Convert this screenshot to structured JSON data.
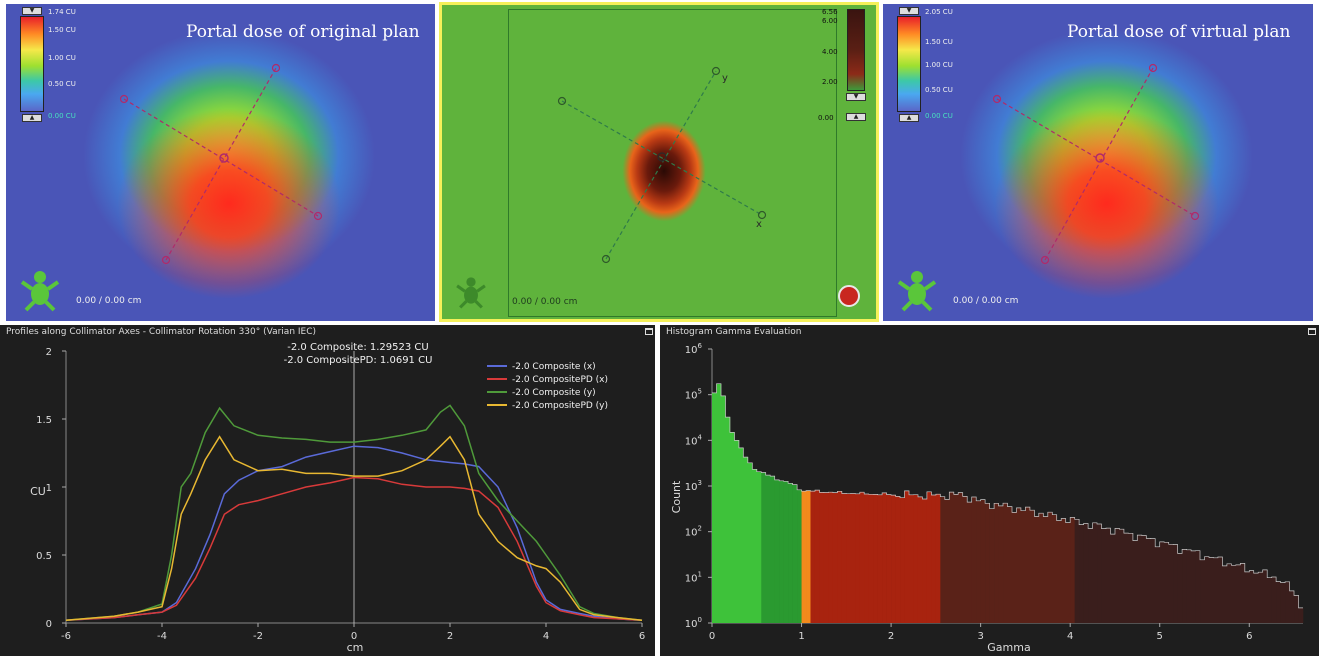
{
  "left_dose": {
    "title": "Portal dose of original plan",
    "scale_labels": [
      "1.74 CU",
      "1.50 CU",
      "1.00 CU",
      "0.50 CU",
      "0.00 CU"
    ],
    "coordinates": "0.00 /  0.00 cm"
  },
  "right_dose": {
    "title": "Portal dose of virtual plan",
    "scale_labels": [
      "2.05 CU",
      "1.50 CU",
      "1.00 CU",
      "0.50 CU",
      "0.00 CU"
    ],
    "coordinates": "0.00 /  0.00 cm"
  },
  "gamma_map": {
    "scale_labels": [
      "6.56",
      "6.00",
      "4.00",
      "2.00",
      "0.00"
    ],
    "coordinates": "0.00 /  0.00 cm",
    "axis_x_label": "x",
    "axis_y_label": "y"
  },
  "profile_panel": {
    "title": "Profiles along Collimator Axes - Collimator Rotation 330° (Varian IEC)",
    "readout_1": "-2.0 Composite: 1.29523 CU",
    "readout_2": "-2.0 CompositePD: 1.0691 CU"
  },
  "histogram_panel": {
    "title": "Histogram Gamma Evaluation"
  },
  "chart_data": [
    {
      "type": "line",
      "xlabel": "cm",
      "ylabel": "CU",
      "xlim": [
        -6,
        6
      ],
      "ylim": [
        0,
        2
      ],
      "x_ticks": [
        "-6",
        "-4",
        "-2",
        "0",
        "2",
        "4",
        "6"
      ],
      "y_ticks": [
        "0",
        "0.5",
        "1",
        "1.5",
        "2"
      ],
      "legend_position": "top-right",
      "cursor_x": 0,
      "series": [
        {
          "name": "-2.0 Composite (x)",
          "color": "#5a6ad8",
          "x": [
            -6,
            -5,
            -4.5,
            -4,
            -3.7,
            -3.3,
            -3,
            -2.7,
            -2.4,
            -2,
            -1.5,
            -1,
            -0.5,
            0,
            0.5,
            1,
            1.5,
            2,
            2.3,
            2.6,
            3,
            3.4,
            3.8,
            4,
            4.3,
            4.7,
            5,
            5.5,
            6
          ],
          "y": [
            0.02,
            0.04,
            0.06,
            0.08,
            0.15,
            0.4,
            0.65,
            0.95,
            1.05,
            1.12,
            1.15,
            1.22,
            1.26,
            1.3,
            1.29,
            1.25,
            1.2,
            1.18,
            1.17,
            1.15,
            1.0,
            0.7,
            0.3,
            0.17,
            0.1,
            0.07,
            0.05,
            0.03,
            0.02
          ]
        },
        {
          "name": "-2.0 CompositePD (x)",
          "color": "#d83a3a",
          "x": [
            -6,
            -5,
            -4.5,
            -4,
            -3.7,
            -3.3,
            -3,
            -2.7,
            -2.4,
            -2,
            -1.5,
            -1,
            -0.5,
            0,
            0.5,
            1,
            1.5,
            2,
            2.3,
            2.6,
            3,
            3.4,
            3.8,
            4,
            4.3,
            4.7,
            5,
            5.5,
            6
          ],
          "y": [
            0.02,
            0.04,
            0.06,
            0.08,
            0.13,
            0.33,
            0.55,
            0.8,
            0.87,
            0.9,
            0.95,
            1.0,
            1.03,
            1.07,
            1.06,
            1.02,
            1.0,
            1.0,
            0.99,
            0.97,
            0.85,
            0.6,
            0.27,
            0.15,
            0.09,
            0.06,
            0.04,
            0.03,
            0.02
          ]
        },
        {
          "name": "-2.0 Composite (y)",
          "color": "#4f9a3a",
          "x": [
            -6,
            -5,
            -4.5,
            -4,
            -3.8,
            -3.6,
            -3.4,
            -3.1,
            -2.8,
            -2.5,
            -2,
            -1.5,
            -1,
            -0.5,
            0,
            0.5,
            1,
            1.5,
            1.8,
            2,
            2.3,
            2.6,
            3,
            3.4,
            3.8,
            4,
            4.3,
            4.7,
            5,
            5.5,
            6
          ],
          "y": [
            0.02,
            0.05,
            0.08,
            0.14,
            0.5,
            1.0,
            1.1,
            1.4,
            1.58,
            1.45,
            1.38,
            1.36,
            1.35,
            1.33,
            1.33,
            1.35,
            1.38,
            1.42,
            1.55,
            1.6,
            1.45,
            1.1,
            0.9,
            0.75,
            0.6,
            0.5,
            0.35,
            0.12,
            0.07,
            0.04,
            0.02
          ]
        },
        {
          "name": "-2.0 CompositePD (y)",
          "color": "#e8b832",
          "x": [
            -6,
            -5,
            -4.5,
            -4,
            -3.8,
            -3.6,
            -3.4,
            -3.1,
            -2.8,
            -2.5,
            -2,
            -1.5,
            -1,
            -0.5,
            0,
            0.5,
            1,
            1.5,
            1.8,
            2,
            2.3,
            2.6,
            3,
            3.4,
            3.8,
            4,
            4.3,
            4.7,
            5,
            5.5,
            6
          ],
          "y": [
            0.02,
            0.05,
            0.08,
            0.12,
            0.4,
            0.8,
            0.95,
            1.2,
            1.37,
            1.2,
            1.12,
            1.13,
            1.1,
            1.1,
            1.08,
            1.08,
            1.12,
            1.2,
            1.3,
            1.37,
            1.2,
            0.8,
            0.6,
            0.48,
            0.42,
            0.4,
            0.3,
            0.1,
            0.06,
            0.04,
            0.02
          ]
        }
      ]
    },
    {
      "type": "bar",
      "xlabel": "Gamma",
      "ylabel": "Count",
      "xlim": [
        0,
        6.6
      ],
      "ylim": [
        1,
        1000000
      ],
      "y_scale": "log",
      "x_ticks": [
        "0",
        "1",
        "2",
        "3",
        "4",
        "5",
        "6"
      ],
      "y_tick_exponents": [
        "0",
        "1",
        "2",
        "3",
        "4",
        "5",
        "6"
      ],
      "y_tick_base": "10",
      "bin_width": 0.05,
      "pass_color": "#2aa632",
      "fail_color_start": "#f07a1a",
      "fail_color_mid": "#a8200e",
      "fail_color_end": "#3a1e1c",
      "anchor_points_gamma": [
        0.0,
        0.05,
        0.1,
        0.15,
        0.2,
        0.3,
        0.4,
        0.5,
        0.7,
        0.9,
        1.0,
        1.5,
        2.0,
        2.5,
        2.8,
        3.0,
        3.5,
        4.0,
        4.5,
        5.0,
        5.5,
        6.0,
        6.3,
        6.5,
        6.6
      ],
      "anchor_points_count": [
        80000,
        150000,
        180000,
        50000,
        20000,
        8000,
        3500,
        2200,
        1500,
        1100,
        800,
        700,
        650,
        620,
        650,
        450,
        300,
        180,
        110,
        60,
        30,
        15,
        10,
        5,
        2
      ]
    }
  ]
}
